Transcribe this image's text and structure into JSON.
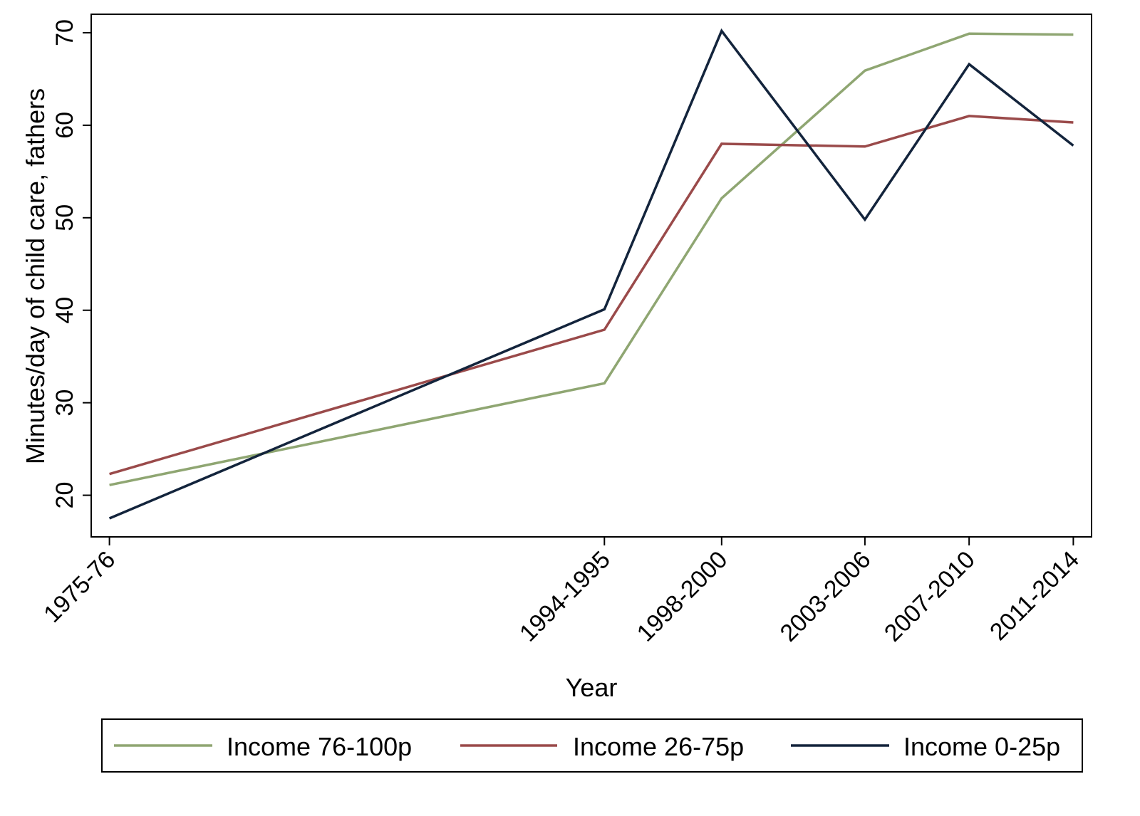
{
  "chart_data": {
    "type": "line",
    "title": "",
    "xlabel": "Year",
    "ylabel": "Minutes/day of child care, fathers",
    "x_tick_positions": [
      1975.5,
      1994.5,
      1999,
      2004.5,
      2008.5,
      2012.5
    ],
    "categories": [
      "1975-76",
      "1994-1995",
      "1998-2000",
      "2003-2006",
      "2007-2010",
      "2011-2014"
    ],
    "y_ticks": [
      20,
      30,
      40,
      50,
      60,
      70
    ],
    "ylim": [
      15.5,
      72
    ],
    "xlim": [
      1974.8,
      2013.2
    ],
    "grid": false,
    "legend_position": "bottom",
    "series": [
      {
        "name": "Income 76-100p",
        "color": "#8fa672",
        "values": [
          21.1,
          32.1,
          52.1,
          65.9,
          69.9,
          69.8
        ]
      },
      {
        "name": "Income 26-75p",
        "color": "#9a4a4a",
        "values": [
          22.3,
          37.9,
          58.0,
          57.7,
          61.0,
          60.3
        ]
      },
      {
        "name": "Income 0-25p",
        "color": "#13243c",
        "values": [
          17.5,
          40.1,
          70.2,
          49.8,
          66.6,
          57.8
        ]
      }
    ]
  }
}
